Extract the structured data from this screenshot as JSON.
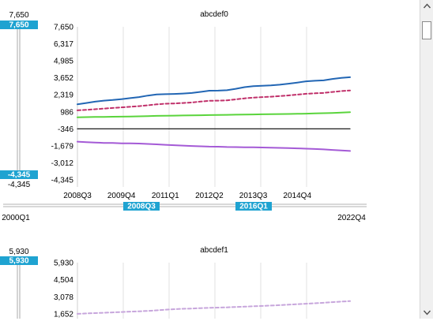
{
  "colors": {
    "badge": "#1fa3d1",
    "grid": "#e2e2e2",
    "blue": "#2266b4",
    "dashed_red": "#c0306a",
    "green": "#5ad43c",
    "black": "#000000",
    "purple": "#a45ad6",
    "dashed_lavender": "#c7a6dc"
  },
  "range_slider": {
    "start_label": "2000Q1",
    "end_label": "2022Q4",
    "handle_left": "2008Q3",
    "handle_right": "2016Q1"
  },
  "chart_data": [
    {
      "type": "line",
      "title": "abcdef0",
      "x_tick_labels": [
        "2008Q3",
        "2009Q4",
        "2011Q1",
        "2012Q2",
        "2013Q3",
        "2014Q4"
      ],
      "x_tick_index": [
        0,
        5,
        10,
        15,
        20,
        25
      ],
      "num_points": 32,
      "y_tick_labels": [
        "7,650",
        "6,317",
        "4,985",
        "3,652",
        "2,319",
        "986",
        "-346",
        "-1,679",
        "-3,012",
        "-4,345"
      ],
      "ylim": [
        -4345,
        7650
      ],
      "y_slider": {
        "top_value": "7,650",
        "top_badge": "7,650",
        "bottom_badge": "-4,345",
        "bottom_value": "-4,345"
      },
      "series": [
        {
          "color_key": "blue",
          "dashed": false,
          "values": [
            1580,
            1680,
            1780,
            1860,
            1910,
            1980,
            2060,
            2140,
            2260,
            2350,
            2370,
            2390,
            2420,
            2460,
            2550,
            2640,
            2650,
            2680,
            2790,
            2920,
            3000,
            3030,
            3060,
            3110,
            3190,
            3280,
            3380,
            3420,
            3450,
            3560,
            3650,
            3700
          ]
        },
        {
          "color_key": "dashed_red",
          "dashed": true,
          "values": [
            1100,
            1140,
            1190,
            1240,
            1290,
            1330,
            1380,
            1430,
            1500,
            1570,
            1620,
            1640,
            1680,
            1720,
            1790,
            1850,
            1860,
            1890,
            1960,
            2040,
            2100,
            2140,
            2170,
            2220,
            2270,
            2330,
            2400,
            2440,
            2470,
            2540,
            2610,
            2660
          ]
        },
        {
          "color_key": "green",
          "dashed": false,
          "values": [
            560,
            570,
            580,
            590,
            600,
            610,
            620,
            630,
            650,
            670,
            680,
            690,
            700,
            710,
            720,
            730,
            740,
            750,
            760,
            770,
            780,
            790,
            800,
            810,
            820,
            830,
            840,
            860,
            880,
            900,
            930,
            960
          ]
        },
        {
          "color_key": "black",
          "dashed": false,
          "values": [
            -346,
            -346,
            -346,
            -346,
            -346,
            -346,
            -346,
            -346,
            -346,
            -346,
            -346,
            -346,
            -346,
            -346,
            -346,
            -346,
            -346,
            -346,
            -346,
            -346,
            -346,
            -346,
            -346,
            -346,
            -346,
            -346,
            -346,
            -346,
            -346,
            -346,
            -346,
            -346
          ]
        },
        {
          "color_key": "purple",
          "dashed": false,
          "values": [
            -1350,
            -1390,
            -1420,
            -1450,
            -1460,
            -1480,
            -1490,
            -1500,
            -1530,
            -1560,
            -1600,
            -1630,
            -1660,
            -1690,
            -1720,
            -1740,
            -1750,
            -1770,
            -1780,
            -1790,
            -1800,
            -1810,
            -1820,
            -1840,
            -1860,
            -1880,
            -1900,
            -1930,
            -1960,
            -2000,
            -2040,
            -2080
          ]
        }
      ]
    },
    {
      "type": "line",
      "title": "abcdef1",
      "num_points": 32,
      "y_tick_labels": [
        "5,930",
        "4,504",
        "3,078",
        "1,652"
      ],
      "ylim": [
        1652,
        5930
      ],
      "y_slider": {
        "top_value": "5,930",
        "top_badge": "5,930"
      },
      "series": [
        {
          "color_key": "dashed_lavender",
          "dashed": true,
          "values": [
            1660,
            1690,
            1720,
            1750,
            1780,
            1810,
            1840,
            1870,
            1900,
            1950,
            2000,
            2050,
            2080,
            2100,
            2130,
            2160,
            2180,
            2200,
            2230,
            2260,
            2290,
            2320,
            2350,
            2380,
            2420,
            2460,
            2500,
            2540,
            2580,
            2630,
            2680,
            2720
          ]
        }
      ]
    }
  ]
}
